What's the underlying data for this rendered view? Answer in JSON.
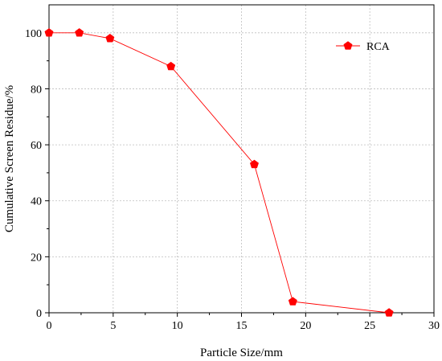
{
  "chart_data": {
    "type": "line",
    "title": "",
    "xlabel": "Particle Size/mm",
    "ylabel": "Cumulative Screen Residue/%",
    "xlim": [
      0,
      30
    ],
    "ylim": [
      0,
      110
    ],
    "xticks": [
      "0",
      "5",
      "10",
      "15",
      "20",
      "25",
      "30"
    ],
    "yticks": [
      "0",
      "20",
      "40",
      "60",
      "80",
      "100"
    ],
    "grid": true,
    "legend_position": "top-right",
    "series": [
      {
        "name": "RCA",
        "color": "#ff0000",
        "marker": "pentagon",
        "x": [
          0,
          2.36,
          4.75,
          9.5,
          16,
          19,
          26.5
        ],
        "y": [
          100,
          100,
          98,
          88,
          53,
          4,
          0
        ]
      }
    ]
  }
}
